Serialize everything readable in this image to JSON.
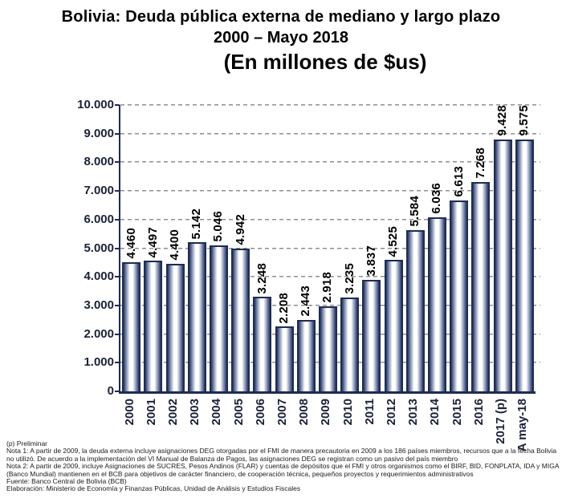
{
  "title": {
    "line1": "Bolivia: Deuda pública externa de mediano y largo plazo",
    "line2": "2000 – Mayo 2018",
    "line3": "(En millones de $us)"
  },
  "chart_data": {
    "type": "bar",
    "title": "Bolivia: Deuda pública externa de mediano y largo plazo 2000 – Mayo 2018",
    "subtitle": "(En millones de $us)",
    "categories": [
      "2000",
      "2001",
      "2002",
      "2003",
      "2004",
      "2005",
      "2006",
      "2007",
      "2008",
      "2009",
      "2010",
      "2011",
      "2012",
      "2013",
      "2014",
      "2015",
      "2016",
      "2017 (p)",
      "A may-18"
    ],
    "values": [
      4460,
      4497,
      4400,
      5142,
      5046,
      4942,
      3248,
      2208,
      2443,
      2918,
      3235,
      3837,
      4525,
      5584,
      6036,
      6613,
      7268,
      9428,
      9575
    ],
    "value_labels": [
      "4.460",
      "4.497",
      "4.400",
      "5.142",
      "5.046",
      "4.942",
      "3.248",
      "2.208",
      "2.443",
      "2.918",
      "3.235",
      "3.837",
      "4.525",
      "5.584",
      "6.036",
      "6.613",
      "7.268",
      "9.428",
      "9.575"
    ],
    "ylim": [
      0,
      10000
    ],
    "y_tick_step": 1000,
    "y_tick_labels": [
      "0",
      "1.000",
      "2.000",
      "3.000",
      "4.000",
      "5.000",
      "6.000",
      "7.000",
      "8.000",
      "9.000",
      "10.000"
    ],
    "grid": "horizontal-dashed",
    "legend": "none",
    "xlabel": "",
    "ylabel": "",
    "colors": {
      "bar_edge": "#1e2c52",
      "bar_center": "#ffffff",
      "axis": "#1e2c52",
      "gridline": "#8f8f8f",
      "value_label": "#000000",
      "tick_label": "#1a2138"
    }
  },
  "footnotes": [
    "(p) Preliminar",
    "Nota 1: A partir de 2009, la deuda externa incluye asignaciones DEG otorgadas por el FMI de manera precautoria en 2009 a los 186 países miembros, recursos que a la fecha Bolivia",
    "no utilizó. De acuerdo a la implementación del VI Manual de Balanza de Pagos, las asignaciones DEG se registran como un pasivo del país miembro",
    "Nota 2: A partir de 2009, incluye Asignaciones de SUCRES, Pesos Andinos (FLAR) y cuentas de depósitos que el FMI y otros organismos como el BIRF, BID, FONPLATA, IDA y MIGA",
    "(Banco Mundial) mantienen en el BCB para objetivos de carácter financiero, de cooperación técnica, pequeños proyectos y requerimientos administrativos",
    "Fuente: Banco Central de Bolivia (BCB)",
    "Elaboración: Ministerio de Economía y Finanzas Públicas, Unidad de Análisis y Estudios Fiscales"
  ]
}
